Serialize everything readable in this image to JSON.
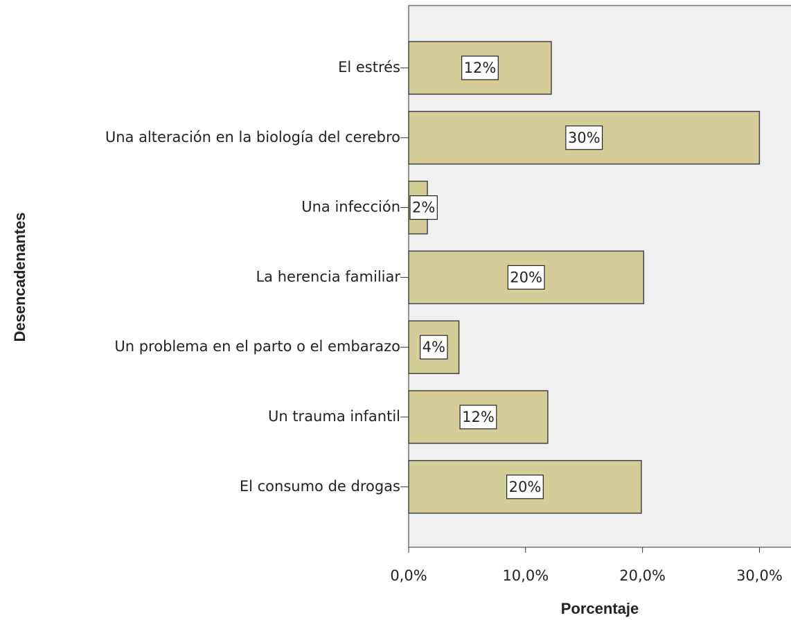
{
  "chart_data": {
    "type": "bar",
    "orientation": "horizontal",
    "x_label": "Porcentaje",
    "y_label": "Desencadenantes",
    "categories": [
      "El estrés",
      "Una alteración en la biología del cerebro",
      "Una infección",
      "La herencia familiar",
      "Un problema en el parto o el embarazo",
      "Un trauma infantil",
      "El consumo de drogas"
    ],
    "values": [
      12.2,
      30.0,
      1.6,
      20.1,
      4.3,
      11.9,
      19.9
    ],
    "value_labels": [
      "12%",
      "30%",
      "2%",
      "20%",
      "4%",
      "12%",
      "20%"
    ],
    "color": "#d4cd98",
    "xlim": [
      0,
      32.7
    ],
    "xticks": [
      {
        "value": 0,
        "label": "0,0%"
      },
      {
        "value": 10,
        "label": "10,0%"
      },
      {
        "value": 20,
        "label": "20,0%"
      },
      {
        "value": 30,
        "label": "30,0%"
      }
    ]
  }
}
